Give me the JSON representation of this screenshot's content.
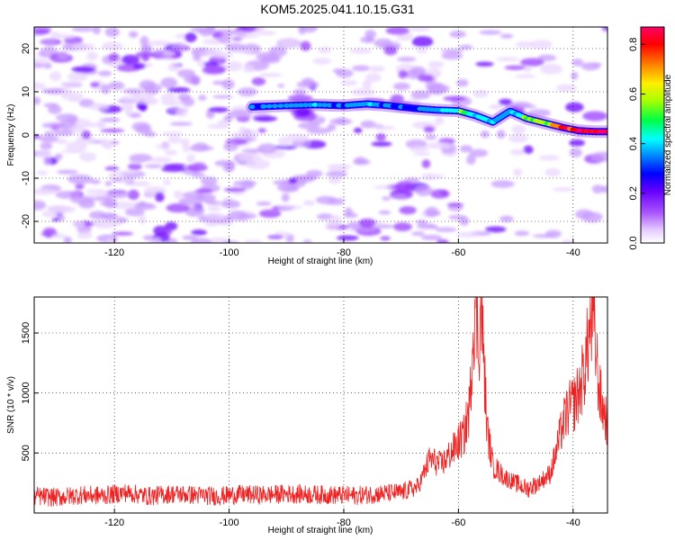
{
  "title": "KOM5.2025.041.10.15.G31",
  "chart_data": [
    {
      "type": "heatmap",
      "xlabel": "Height of straight line (km)",
      "ylabel": "Frequency (Hz)",
      "xlim": [
        -134,
        -34
      ],
      "ylim": [
        -25,
        25
      ],
      "xticks": [
        -120,
        -100,
        -80,
        -60,
        -40
      ],
      "yticks": [
        -20,
        -10,
        0,
        10,
        20
      ],
      "colorbar": {
        "label": "Normalized spectral amplitude",
        "range": [
          0.0,
          0.87
        ],
        "ticks": [
          0.0,
          0.2,
          0.4,
          0.6,
          0.8
        ],
        "colormap": [
          "#ffffff",
          "#e6ccff",
          "#aa55ff",
          "#6600ff",
          "#0000ff",
          "#00a0ff",
          "#00ffff",
          "#00ff44",
          "#aaff00",
          "#ffee00",
          "#ff8800",
          "#ff0000",
          "#ff0066"
        ]
      },
      "ridge": {
        "x": [
          -96,
          -90,
          -85,
          -80,
          -76,
          -72,
          -68,
          -64,
          -60,
          -57,
          -54,
          -51,
          -48,
          -45,
          -42,
          -39,
          -36,
          -34
        ],
        "freq": [
          6.5,
          6.8,
          7.0,
          6.8,
          7.2,
          6.8,
          6.2,
          5.8,
          5.6,
          4.5,
          3.0,
          5.5,
          3.8,
          2.8,
          1.8,
          1.0,
          0.8,
          0.8
        ],
        "amplitude": [
          0.28,
          0.32,
          0.33,
          0.3,
          0.35,
          0.25,
          0.28,
          0.33,
          0.45,
          0.4,
          0.38,
          0.3,
          0.5,
          0.55,
          0.7,
          0.82,
          0.85,
          0.85
        ]
      },
      "grid": true
    },
    {
      "type": "line",
      "xlabel": "Height of straight line (km)",
      "ylabel": "SNR (10 * v/v)",
      "xlim": [
        -134,
        -34
      ],
      "ylim": [
        0,
        1800
      ],
      "xticks": [
        -120,
        -100,
        -80,
        -60,
        -40
      ],
      "yticks": [
        500,
        1000,
        1500
      ],
      "grid": true,
      "series": [
        {
          "color": "#ee2222",
          "x": [
            -134,
            -130,
            -126,
            -122,
            -118,
            -114,
            -110,
            -106,
            -102,
            -98,
            -94,
            -90,
            -86,
            -82,
            -78,
            -74,
            -70,
            -67,
            -65,
            -63,
            -61,
            -59,
            -58,
            -57.5,
            -57,
            -56.5,
            -56,
            -55,
            -54,
            -52,
            -50,
            -48,
            -46,
            -44,
            -43,
            -42,
            -41,
            -40,
            -39,
            -38,
            -37,
            -36.5,
            -36,
            -35.5,
            -35,
            -34
          ],
          "y": [
            140,
            130,
            150,
            145,
            170,
            140,
            160,
            150,
            140,
            155,
            150,
            160,
            155,
            150,
            145,
            160,
            170,
            220,
            450,
            400,
            520,
            650,
            900,
            1500,
            1800,
            1400,
            1700,
            700,
            400,
            300,
            250,
            200,
            250,
            330,
            500,
            700,
            850,
            900,
            1000,
            1200,
            1550,
            1600,
            1350,
            1050,
            900,
            750
          ]
        }
      ]
    }
  ]
}
